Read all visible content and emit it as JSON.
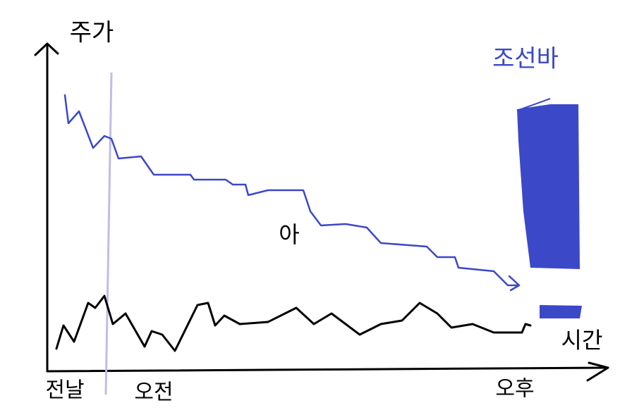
{
  "y_axis_label": "주가",
  "x_axis_label": "시간",
  "bar_label": "조선바",
  "line_label": "아",
  "x_labels": [
    "전날",
    "오전",
    "오후"
  ]
}
